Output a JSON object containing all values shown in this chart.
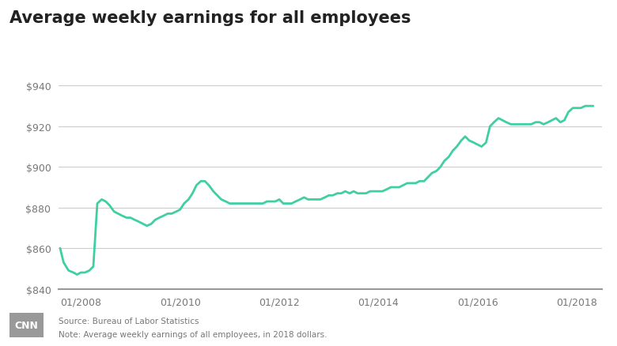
{
  "title": "Average weekly earnings for all employees",
  "source_text": "Source: Bureau of Labor Statistics",
  "note_text": "Note: Average weekly earnings of all employees, in 2018 dollars.",
  "line_color": "#3ecfa3",
  "background_color": "#ffffff",
  "grid_color": "#cccccc",
  "bottom_line_color": "#999999",
  "title_color": "#222222",
  "cnn_box_color": "#999999",
  "footer_text_color": "#777777",
  "tick_color": "#777777",
  "ylim": [
    840,
    945
  ],
  "yticks": [
    840,
    860,
    880,
    900,
    920,
    940
  ],
  "xtick_labels": [
    "01/2008",
    "01/2010",
    "01/2012",
    "01/2014",
    "01/2016",
    "01/2018"
  ],
  "xtick_positions": [
    2008.0,
    2010.0,
    2012.0,
    2014.0,
    2016.0,
    2018.0
  ],
  "xlim_left": 2007.55,
  "xlim_right": 2018.5,
  "data": [
    [
      2007.58,
      860
    ],
    [
      2007.65,
      853
    ],
    [
      2007.75,
      849
    ],
    [
      2007.85,
      848
    ],
    [
      2007.92,
      847
    ],
    [
      2008.0,
      848
    ],
    [
      2008.08,
      848
    ],
    [
      2008.17,
      849
    ],
    [
      2008.25,
      851
    ],
    [
      2008.33,
      882
    ],
    [
      2008.42,
      884
    ],
    [
      2008.5,
      883
    ],
    [
      2008.58,
      881
    ],
    [
      2008.67,
      878
    ],
    [
      2008.75,
      877
    ],
    [
      2008.83,
      876
    ],
    [
      2008.92,
      875
    ],
    [
      2009.0,
      875
    ],
    [
      2009.08,
      874
    ],
    [
      2009.17,
      873
    ],
    [
      2009.25,
      872
    ],
    [
      2009.33,
      871
    ],
    [
      2009.42,
      872
    ],
    [
      2009.5,
      874
    ],
    [
      2009.58,
      875
    ],
    [
      2009.67,
      876
    ],
    [
      2009.75,
      877
    ],
    [
      2009.83,
      877
    ],
    [
      2009.92,
      878
    ],
    [
      2010.0,
      879
    ],
    [
      2010.08,
      882
    ],
    [
      2010.17,
      884
    ],
    [
      2010.25,
      887
    ],
    [
      2010.33,
      891
    ],
    [
      2010.42,
      893
    ],
    [
      2010.5,
      893
    ],
    [
      2010.58,
      891
    ],
    [
      2010.67,
      888
    ],
    [
      2010.75,
      886
    ],
    [
      2010.83,
      884
    ],
    [
      2010.92,
      883
    ],
    [
      2011.0,
      882
    ],
    [
      2011.08,
      882
    ],
    [
      2011.17,
      882
    ],
    [
      2011.25,
      882
    ],
    [
      2011.33,
      882
    ],
    [
      2011.42,
      882
    ],
    [
      2011.5,
      882
    ],
    [
      2011.58,
      882
    ],
    [
      2011.67,
      882
    ],
    [
      2011.75,
      883
    ],
    [
      2011.83,
      883
    ],
    [
      2011.92,
      883
    ],
    [
      2012.0,
      884
    ],
    [
      2012.08,
      882
    ],
    [
      2012.17,
      882
    ],
    [
      2012.25,
      882
    ],
    [
      2012.33,
      883
    ],
    [
      2012.42,
      884
    ],
    [
      2012.5,
      885
    ],
    [
      2012.58,
      884
    ],
    [
      2012.67,
      884
    ],
    [
      2012.75,
      884
    ],
    [
      2012.83,
      884
    ],
    [
      2012.92,
      885
    ],
    [
      2013.0,
      886
    ],
    [
      2013.08,
      886
    ],
    [
      2013.17,
      887
    ],
    [
      2013.25,
      887
    ],
    [
      2013.33,
      888
    ],
    [
      2013.42,
      887
    ],
    [
      2013.5,
      888
    ],
    [
      2013.58,
      887
    ],
    [
      2013.67,
      887
    ],
    [
      2013.75,
      887
    ],
    [
      2013.83,
      888
    ],
    [
      2013.92,
      888
    ],
    [
      2014.0,
      888
    ],
    [
      2014.08,
      888
    ],
    [
      2014.17,
      889
    ],
    [
      2014.25,
      890
    ],
    [
      2014.33,
      890
    ],
    [
      2014.42,
      890
    ],
    [
      2014.5,
      891
    ],
    [
      2014.58,
      892
    ],
    [
      2014.67,
      892
    ],
    [
      2014.75,
      892
    ],
    [
      2014.83,
      893
    ],
    [
      2014.92,
      893
    ],
    [
      2015.0,
      895
    ],
    [
      2015.08,
      897
    ],
    [
      2015.17,
      898
    ],
    [
      2015.25,
      900
    ],
    [
      2015.33,
      903
    ],
    [
      2015.42,
      905
    ],
    [
      2015.5,
      908
    ],
    [
      2015.58,
      910
    ],
    [
      2015.67,
      913
    ],
    [
      2015.75,
      915
    ],
    [
      2015.83,
      913
    ],
    [
      2015.92,
      912
    ],
    [
      2016.0,
      911
    ],
    [
      2016.08,
      910
    ],
    [
      2016.17,
      912
    ],
    [
      2016.25,
      920
    ],
    [
      2016.33,
      922
    ],
    [
      2016.42,
      924
    ],
    [
      2016.5,
      923
    ],
    [
      2016.58,
      922
    ],
    [
      2016.67,
      921
    ],
    [
      2016.75,
      921
    ],
    [
      2016.83,
      921
    ],
    [
      2016.92,
      921
    ],
    [
      2017.0,
      921
    ],
    [
      2017.08,
      921
    ],
    [
      2017.17,
      922
    ],
    [
      2017.25,
      922
    ],
    [
      2017.33,
      921
    ],
    [
      2017.42,
      922
    ],
    [
      2017.5,
      923
    ],
    [
      2017.58,
      924
    ],
    [
      2017.67,
      922
    ],
    [
      2017.75,
      923
    ],
    [
      2017.83,
      927
    ],
    [
      2017.92,
      929
    ],
    [
      2018.0,
      929
    ],
    [
      2018.08,
      929
    ],
    [
      2018.17,
      930
    ],
    [
      2018.25,
      930
    ],
    [
      2018.33,
      930
    ]
  ]
}
